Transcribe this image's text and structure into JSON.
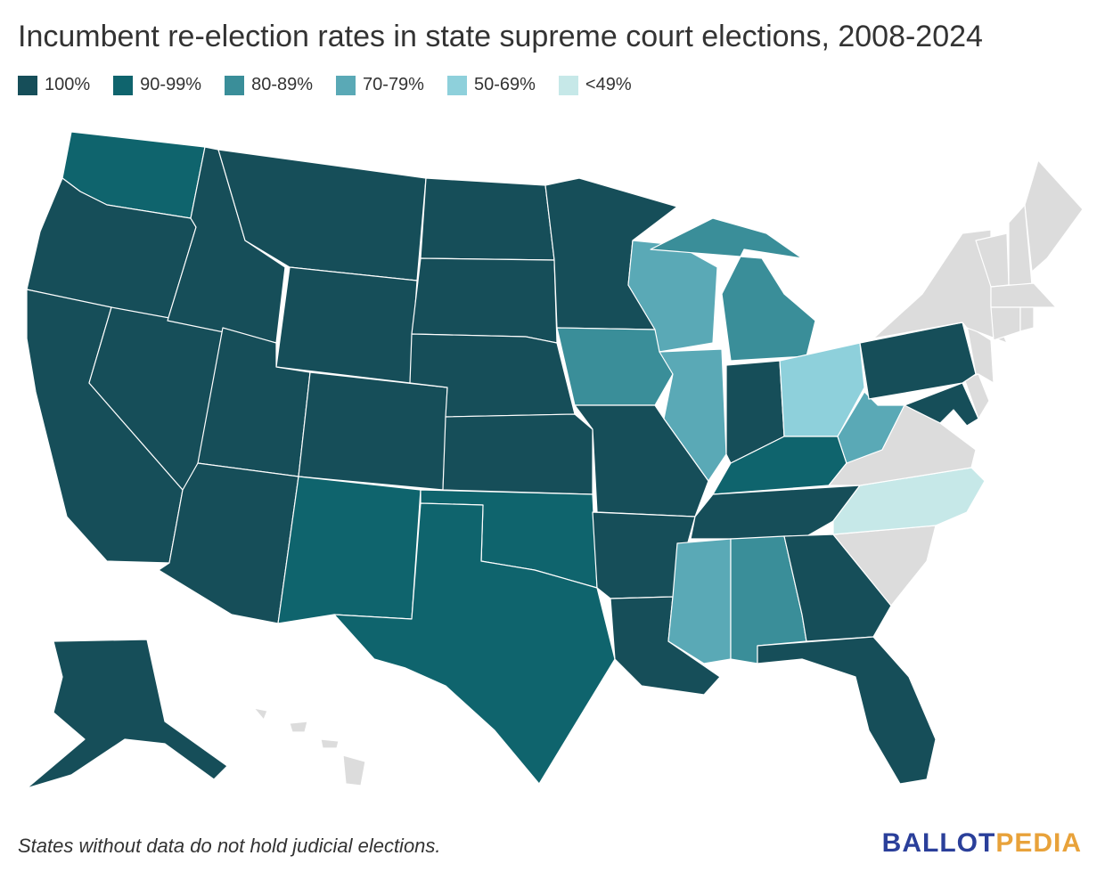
{
  "title": "Incumbent re-election rates in state supreme court elections, 2008-2024",
  "legend": [
    {
      "label": "100%",
      "color": "#164e59"
    },
    {
      "label": "90-99%",
      "color": "#0f646d"
    },
    {
      "label": "80-89%",
      "color": "#3a8e99"
    },
    {
      "label": "70-79%",
      "color": "#5aa9b6"
    },
    {
      "label": "50-69%",
      "color": "#8ed0db"
    },
    {
      "label": "<49%",
      "color": "#c6e8e8"
    }
  ],
  "no_data_color": "#dcdcdc",
  "states": {
    "WA": "90-99%",
    "OR": "100%",
    "CA": "100%",
    "NV": "100%",
    "ID": "100%",
    "MT": "100%",
    "WY": "100%",
    "UT": "100%",
    "AZ": "100%",
    "CO": "100%",
    "NM": "90-99%",
    "ND": "100%",
    "SD": "100%",
    "NE": "100%",
    "KS": "100%",
    "OK": "90-99%",
    "TX": "90-99%",
    "MN": "100%",
    "IA": "80-89%",
    "MO": "100%",
    "AR": "100%",
    "LA": "100%",
    "WI": "70-79%",
    "IL": "70-79%",
    "MI": "80-89%",
    "IN": "100%",
    "OH": "50-69%",
    "KY": "90-99%",
    "TN": "100%",
    "MS": "70-79%",
    "AL": "80-89%",
    "GA": "100%",
    "FL": "100%",
    "WV": "70-79%",
    "PA": "100%",
    "MD": "100%",
    "NC": "<49%",
    "AK": "100%",
    "VA": "no-data",
    "SC": "no-data",
    "NY": "no-data",
    "NJ": "no-data",
    "DE": "no-data",
    "CT": "no-data",
    "RI": "no-data",
    "MA": "no-data",
    "VT": "no-data",
    "NH": "no-data",
    "ME": "no-data",
    "HI": "no-data"
  },
  "footnote": "States without data do not hold judicial elections.",
  "logo": {
    "part1": "BALLOT",
    "part2": "PEDIA"
  }
}
